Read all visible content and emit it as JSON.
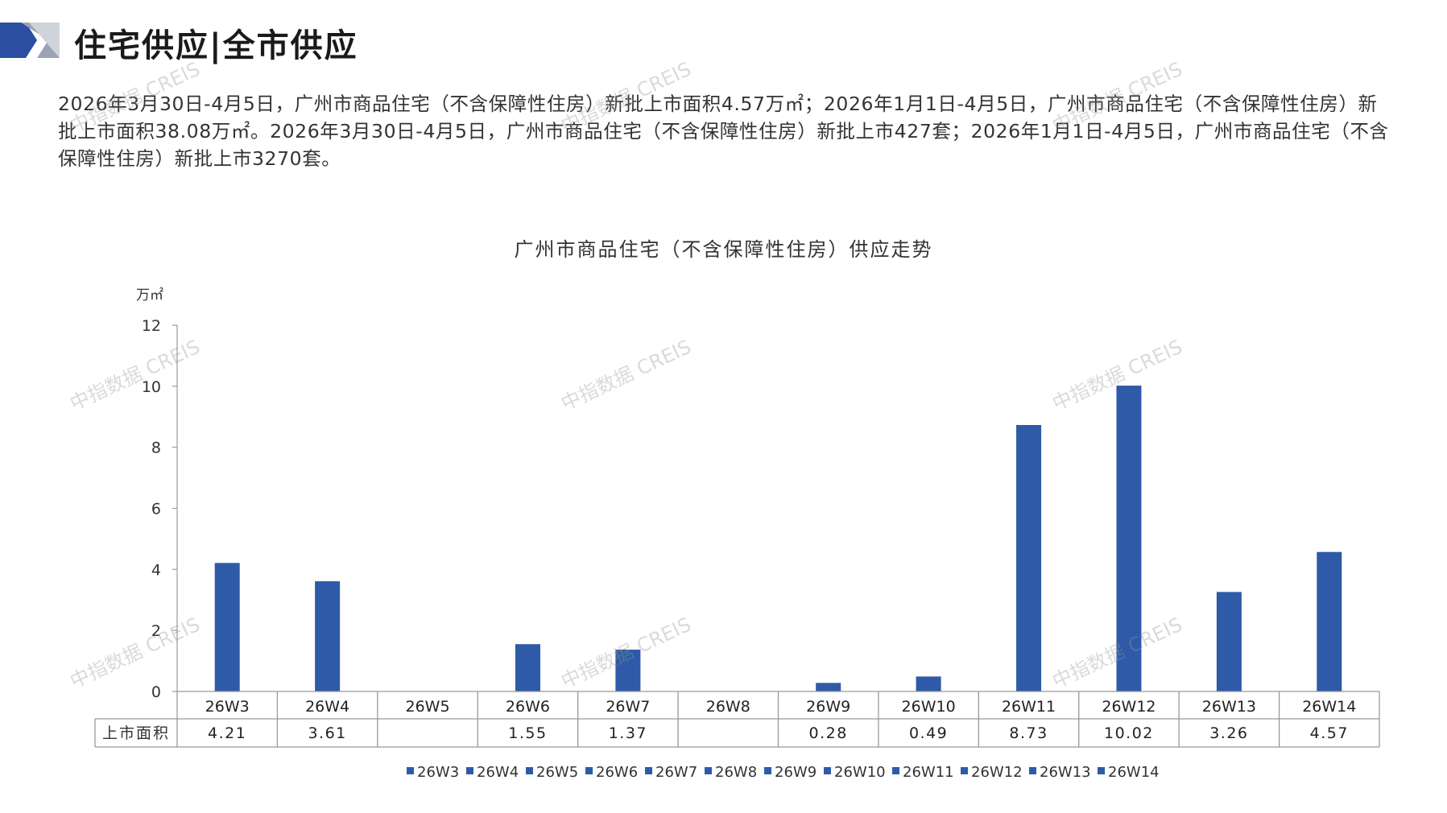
{
  "header": {
    "title": "住宅供应|全市供应",
    "accent_color": "#2b4ea2"
  },
  "summary": "2026年3月30日-4月5日，广州市商品住宅（不含保障性住房）新批上市面积4.57万㎡；2026年1月1日-4月5日，广州市商品住宅（不含保障性住房）新批上市面积38.08万㎡。2026年3月30日-4月5日，广州市商品住宅（不含保障性住房）新批上市427套；2026年1月1日-4月5日，广州市商品住宅（不含保障性住房）新批上市3270套。",
  "watermark_text": "中指数据 CREIS",
  "chart_data": {
    "type": "bar",
    "title": "广州市商品住宅（不含保障性住房）供应走势",
    "unit_label": "万㎡",
    "ylim": [
      0,
      12
    ],
    "yticks": [
      0,
      2,
      4,
      6,
      8,
      10,
      12
    ],
    "categories": [
      "26W3",
      "26W4",
      "26W5",
      "26W6",
      "26W7",
      "26W8",
      "26W9",
      "26W10",
      "26W11",
      "26W12",
      "26W13",
      "26W14"
    ],
    "series": [
      {
        "name": "上市面积",
        "values": [
          4.21,
          3.61,
          null,
          1.55,
          1.37,
          null,
          0.28,
          0.49,
          8.73,
          10.02,
          3.26,
          4.57
        ],
        "labels": [
          "4.21",
          "3.61",
          "",
          "1.55",
          "1.37",
          "",
          "0.28",
          "0.49",
          "8.73",
          "10.02",
          "3.26",
          "4.57"
        ]
      }
    ],
    "bar_color": "#2e5aa8",
    "legend": {
      "position": "bottom",
      "entries": [
        "26W3",
        "26W4",
        "26W5",
        "26W6",
        "26W7",
        "26W8",
        "26W9",
        "26W10",
        "26W11",
        "26W12",
        "26W13",
        "26W14"
      ]
    },
    "grid": false,
    "data_table": true
  }
}
